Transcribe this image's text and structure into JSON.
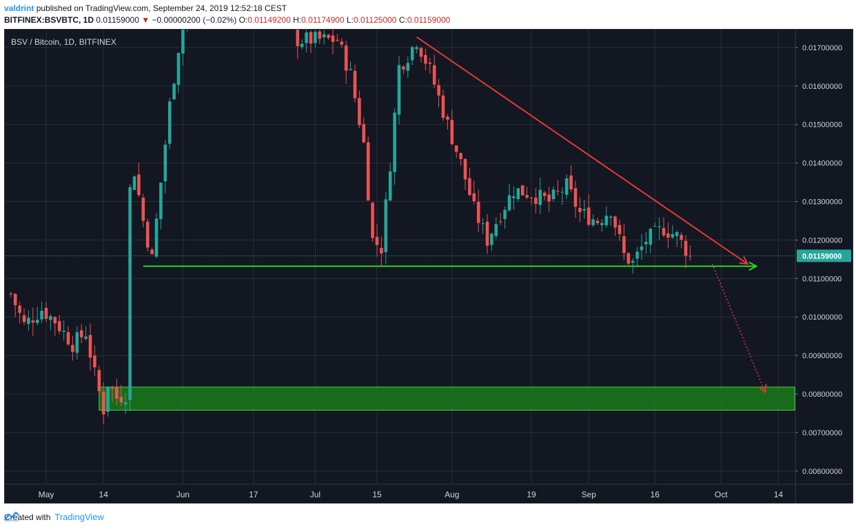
{
  "header": {
    "author": "valdrint",
    "published_text": "published on TradingView.com, September 24, 2019 12:52:18 CEST",
    "symbol": "BITFINEX:BSVBTC, 1D",
    "last": "0.01159000",
    "change_arrow": "▼",
    "change": "−0.00000200 (−0.02%)",
    "o_label": "O:",
    "o_val": "0.01149200",
    "h_label": "H:",
    "h_val": "0.01174900",
    "l_label": "L:",
    "l_val": "0.01125000",
    "c_label": "C:",
    "c_val": "0.01159000"
  },
  "chart_title": "BSV / Bitcoin, 1D, BITFINEX",
  "footer": {
    "created_with": "Created with",
    "brand": "TradingView"
  },
  "colors": {
    "background": "#131722",
    "grid": "#2a2e39",
    "up": "#26a69a",
    "down": "#ef5350",
    "resistance": "#e53935",
    "support": "#2bd62b",
    "zone": "#1b7a1b",
    "price_tag": "#26a69a"
  },
  "chart_data": {
    "type": "candlestick",
    "title": "BSV / Bitcoin, 1D, BITFINEX",
    "ylim": [
      0.0058,
      0.0175
    ],
    "y_ticks": [
      "0.01700000",
      "0.01600000",
      "0.01500000",
      "0.01400000",
      "0.01300000",
      "0.01200000",
      "0.01100000",
      "0.01000000",
      "0.00900000",
      "0.00800000",
      "0.00700000",
      "0.00600000"
    ],
    "x_ticks": [
      "May",
      "14",
      "Jun",
      "17",
      "Jul",
      "15",
      "Aug",
      "19",
      "Sep",
      "16",
      "Oct",
      "14"
    ],
    "x_tick_dates": [
      "2019-05-01",
      "2019-05-14",
      "2019-06-01",
      "2019-06-17",
      "2019-07-01",
      "2019-07-15",
      "2019-08-01",
      "2019-08-19",
      "2019-09-01",
      "2019-09-16",
      "2019-10-01",
      "2019-10-14"
    ],
    "current_price": 0.01159,
    "current_price_label": "0.01159000",
    "date_start": "2019-04-23",
    "date_end": "2019-09-24",
    "close_keypoints": [
      [
        "2019-04-23",
        0.0106
      ],
      [
        "2019-04-26",
        0.0098
      ],
      [
        "2019-04-30",
        0.0102
      ],
      [
        "2019-05-03",
        0.0099
      ],
      [
        "2019-05-07",
        0.0093
      ],
      [
        "2019-05-10",
        0.0096
      ],
      [
        "2019-05-12",
        0.0085
      ],
      [
        "2019-05-14",
        0.0076
      ],
      [
        "2019-05-15",
        0.0083
      ],
      [
        "2019-05-17",
        0.0079
      ],
      [
        "2019-05-19",
        0.008
      ],
      [
        "2019-05-20",
        0.0133
      ],
      [
        "2019-05-21",
        0.0138
      ],
      [
        "2019-05-23",
        0.0125
      ],
      [
        "2019-05-25",
        0.0115
      ],
      [
        "2019-05-27",
        0.0135
      ],
      [
        "2019-05-29",
        0.0155
      ],
      [
        "2019-06-02",
        0.0185
      ],
      [
        "2019-06-25",
        0.0185
      ],
      [
        "2019-06-27",
        0.0172
      ],
      [
        "2019-07-06",
        0.0172
      ],
      [
        "2019-07-09",
        0.0163
      ],
      [
        "2019-07-12",
        0.0145
      ],
      [
        "2019-07-14",
        0.012
      ],
      [
        "2019-07-16",
        0.0118
      ],
      [
        "2019-07-18",
        0.014
      ],
      [
        "2019-07-20",
        0.0165
      ],
      [
        "2019-07-22",
        0.0168
      ],
      [
        "2019-07-24",
        0.0172
      ],
      [
        "2019-07-27",
        0.0164
      ],
      [
        "2019-07-31",
        0.015
      ],
      [
        "2019-08-03",
        0.014
      ],
      [
        "2019-08-06",
        0.0128
      ],
      [
        "2019-08-09",
        0.012
      ],
      [
        "2019-08-12",
        0.0127
      ],
      [
        "2019-08-15",
        0.0133
      ],
      [
        "2019-08-19",
        0.0132
      ],
      [
        "2019-08-23",
        0.013
      ],
      [
        "2019-08-27",
        0.0134
      ],
      [
        "2019-08-30",
        0.0127
      ],
      [
        "2019-09-03",
        0.0125
      ],
      [
        "2019-09-06",
        0.0128
      ],
      [
        "2019-09-09",
        0.0116
      ],
      [
        "2019-09-11",
        0.0114
      ],
      [
        "2019-09-14",
        0.012
      ],
      [
        "2019-09-18",
        0.0123
      ],
      [
        "2019-09-21",
        0.0121
      ],
      [
        "2019-09-24",
        0.01159
      ]
    ],
    "resistance_line": {
      "from": [
        "2019-07-24",
        0.01727
      ],
      "to": [
        "2019-10-07",
        0.01138
      ]
    },
    "support_line": {
      "from": [
        "2019-05-23",
        0.01132
      ],
      "to": [
        "2019-10-09",
        0.01132
      ],
      "level": 0.01132
    },
    "target_projection": {
      "from": [
        "2019-09-29",
        0.01138
      ],
      "to": [
        "2019-10-11",
        0.00805
      ]
    },
    "support_zone": {
      "from": "2019-05-13",
      "to_right_edge": true,
      "low": 0.00758,
      "high": 0.00818
    }
  }
}
